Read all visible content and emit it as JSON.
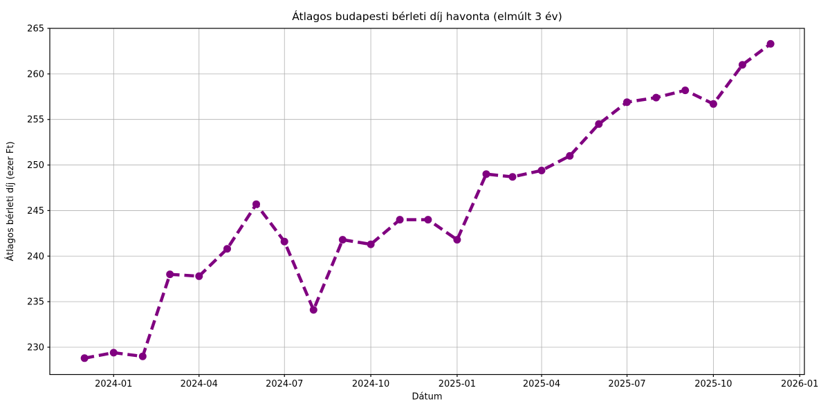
{
  "chart_data": {
    "type": "line",
    "title": "Átlagos budapesti bérleti díj havonta (elmúlt 3 év)",
    "xlabel": "Dátum",
    "ylabel": "Átlagos bérleti díj (ezer Ft)",
    "line_color": "#800080",
    "line_style": "dashed",
    "marker": "circle",
    "grid": true,
    "grid_color": "#b0b0b0",
    "ylim": [
      227.0,
      265.0
    ],
    "yticks": [
      230,
      235,
      240,
      245,
      250,
      255,
      260,
      265
    ],
    "xticks": [
      "2024-01",
      "2024-04",
      "2024-07",
      "2024-10",
      "2025-01",
      "2025-04",
      "2025-07",
      "2025-10",
      "2026-01"
    ],
    "xlim": [
      "2023-10-25",
      "2026-01-06"
    ],
    "x": [
      "2023-12",
      "2024-01",
      "2024-02",
      "2024-03",
      "2024-04",
      "2024-05",
      "2024-06",
      "2024-07",
      "2024-08",
      "2024-09",
      "2024-10",
      "2024-11",
      "2024-12",
      "2025-01",
      "2025-02",
      "2025-03",
      "2025-04",
      "2025-05",
      "2025-06",
      "2025-07",
      "2025-08",
      "2025-09",
      "2025-10",
      "2025-11",
      "2025-12"
    ],
    "values": [
      228.8,
      229.4,
      229.0,
      238.0,
      237.8,
      240.8,
      245.7,
      241.6,
      234.1,
      241.8,
      241.3,
      244.0,
      244.0,
      241.8,
      249.0,
      248.7,
      249.4,
      251.0,
      254.5,
      256.9,
      257.4,
      258.2,
      256.7,
      261.0,
      263.3
    ]
  }
}
